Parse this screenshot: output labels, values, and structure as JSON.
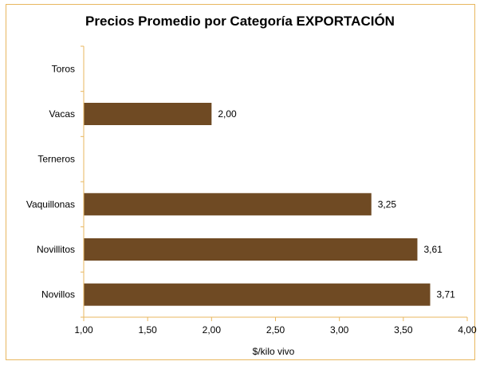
{
  "chart_data": {
    "type": "bar",
    "orientation": "horizontal",
    "title": "Precios Promedio por Categoría EXPORTACIÓN",
    "xlabel": "$/kilo vivo",
    "ylabel": "",
    "categories": [
      "Toros",
      "Vacas",
      "Terneros",
      "Vaquillonas",
      "Novillitos",
      "Novillos"
    ],
    "values": [
      null,
      2.0,
      null,
      3.25,
      3.61,
      3.71
    ],
    "value_labels": [
      "",
      "2,00",
      "",
      "3,25",
      "3,61",
      "3,71"
    ],
    "xlim": [
      1.0,
      4.0
    ],
    "x_ticks": [
      1.0,
      1.5,
      2.0,
      2.5,
      3.0,
      3.5,
      4.0
    ],
    "x_tick_labels": [
      "1,00",
      "1,50",
      "2,00",
      "2,50",
      "3,00",
      "3,50",
      "4,00"
    ],
    "grid": false,
    "legend": "none",
    "colors": {
      "bar": "#6f4a23",
      "axis": "#e8b75f",
      "frame": "#e8b75f"
    }
  }
}
